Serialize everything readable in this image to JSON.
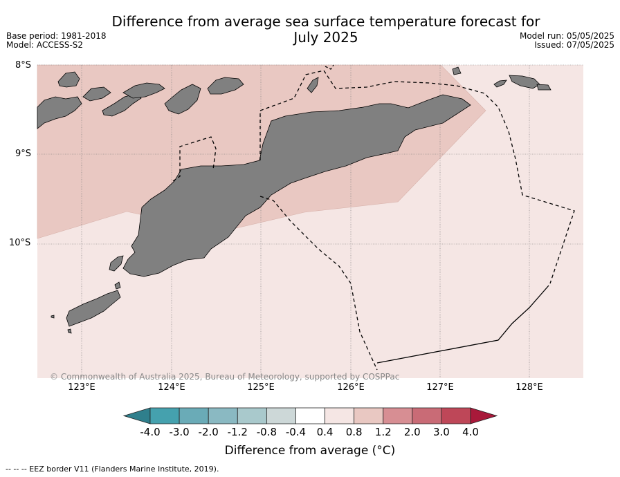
{
  "title_line1": "Difference from average sea surface temperature forecast for",
  "title_line2": "July 2025",
  "base_period": "Base period: 1981-2018",
  "model": "Model: ACCESS-S2",
  "model_run": "Model run: 05/05/2025",
  "issued": "Issued: 07/05/2025",
  "copyright": "© Commonwealth of Australia 2025, Bureau of Meteorology, supported by COSPPac",
  "lat_labels": [
    "8°S",
    "9°S",
    "10°S"
  ],
  "lon_labels": [
    "123°E",
    "124°E",
    "125°E",
    "126°E",
    "127°E",
    "128°E"
  ],
  "colorbar": {
    "title": "Difference from average (°C)",
    "ticks": [
      "-4.0",
      "-3.0",
      "-2.0",
      "-1.2",
      "-0.8",
      "-0.4",
      "0.4",
      "0.8",
      "1.2",
      "2.0",
      "3.0",
      "4.0"
    ],
    "colors": [
      "#2f7f8c",
      "#45a1ae",
      "#6aabb7",
      "#8ab9c2",
      "#a9c9cc",
      "#cdd8d8",
      "#ffffff",
      "#f5e6e4",
      "#e9c8c2",
      "#d78e93",
      "#c96b76",
      "#be4758",
      "#a8193a"
    ]
  },
  "legend_footnote": "-- -- -- EEZ border V11 (Flanders Marine Institute, 2019).",
  "map_colors": {
    "sea_low": "#f5e6e4",
    "sea_mid": "#e9c8c2",
    "land": "#808080"
  }
}
